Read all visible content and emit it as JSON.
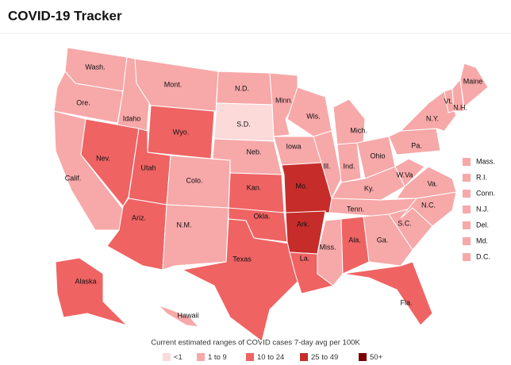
{
  "title": "COVID-19 Tracker",
  "states": [
    {
      "name": "Wash.",
      "color": "#f7a8a8"
    },
    {
      "name": "Ore.",
      "color": "#f7a8a8"
    },
    {
      "name": "Calif.",
      "color": "#f7a8a8"
    },
    {
      "name": "Idaho",
      "color": "#f7a8a8"
    },
    {
      "name": "Nev.",
      "color": "#ef6363"
    },
    {
      "name": "Mont.",
      "color": "#f7a8a8"
    },
    {
      "name": "Wyo.",
      "color": "#ef6363"
    },
    {
      "name": "Utah",
      "color": "#ef6363"
    },
    {
      "name": "Ariz.",
      "color": "#ef6363"
    },
    {
      "name": "Colo.",
      "color": "#f7a8a8"
    },
    {
      "name": "N.M.",
      "color": "#f7a8a8"
    },
    {
      "name": "N.D.",
      "color": "#f7a8a8"
    },
    {
      "name": "S.D.",
      "color": "#fcdada"
    },
    {
      "name": "Neb.",
      "color": "#f7a8a8"
    },
    {
      "name": "Kan.",
      "color": "#ef6363"
    },
    {
      "name": "Okla.",
      "color": "#ef6363"
    },
    {
      "name": "Texas",
      "color": "#ef6363"
    },
    {
      "name": "Minn.",
      "color": "#f7a8a8"
    },
    {
      "name": "Iowa",
      "color": "#f7a8a8"
    },
    {
      "name": "Mo.",
      "color": "#c62d2a"
    },
    {
      "name": "Ark.",
      "color": "#c62d2a"
    },
    {
      "name": "La.",
      "color": "#ef6363"
    },
    {
      "name": "Wis.",
      "color": "#f7a8a8"
    },
    {
      "name": "Ill.",
      "color": "#f7a8a8"
    },
    {
      "name": "Mich.",
      "color": "#f7a8a8"
    },
    {
      "name": "Ind.",
      "color": "#f7a8a8"
    },
    {
      "name": "Ohio",
      "color": "#f7a8a8"
    },
    {
      "name": "Ky.",
      "color": "#f7a8a8"
    },
    {
      "name": "Tenn.",
      "color": "#f7a8a8"
    },
    {
      "name": "Miss.",
      "color": "#f7a8a8"
    },
    {
      "name": "Ala.",
      "color": "#ef6363"
    },
    {
      "name": "Ga.",
      "color": "#f7a8a8"
    },
    {
      "name": "Fla.",
      "color": "#ef6363"
    },
    {
      "name": "S.C.",
      "color": "#f7a8a8"
    },
    {
      "name": "N.C.",
      "color": "#f7a8a8"
    },
    {
      "name": "Va.",
      "color": "#f7a8a8"
    },
    {
      "name": "W.Va",
      "color": "#f7a8a8"
    },
    {
      "name": "Pa.",
      "color": "#f7a8a8"
    },
    {
      "name": "N.Y.",
      "color": "#f7a8a8"
    },
    {
      "name": "Vt.",
      "color": "#f7a8a8"
    },
    {
      "name": "N.H.",
      "color": "#f7a8a8"
    },
    {
      "name": "Maine",
      "color": "#f7a8a8"
    },
    {
      "name": "Alaska",
      "color": "#ef6363"
    },
    {
      "name": "Hawaii",
      "color": "#f7a8a8"
    }
  ],
  "small_states": [
    {
      "name": "Mass.",
      "color": "#f7a8a8"
    },
    {
      "name": "R.I.",
      "color": "#f7a8a8"
    },
    {
      "name": "Conn.",
      "color": "#f7a8a8"
    },
    {
      "name": "N.J.",
      "color": "#f7a8a8"
    },
    {
      "name": "Del.",
      "color": "#f7a8a8"
    },
    {
      "name": "Md.",
      "color": "#f7a8a8"
    },
    {
      "name": "D.C.",
      "color": "#f7a8a8"
    }
  ],
  "legend": {
    "title": "Current estimated ranges of COVID cases 7-day avg per 100K",
    "items": [
      {
        "label": "<1",
        "color": "#fcdada"
      },
      {
        "label": "1 to 9",
        "color": "#f7a8a8"
      },
      {
        "label": "10 to 24",
        "color": "#ef6363"
      },
      {
        "label": "25 to 49",
        "color": "#c62d2a"
      },
      {
        "label": "50+",
        "color": "#7a0000"
      }
    ]
  }
}
